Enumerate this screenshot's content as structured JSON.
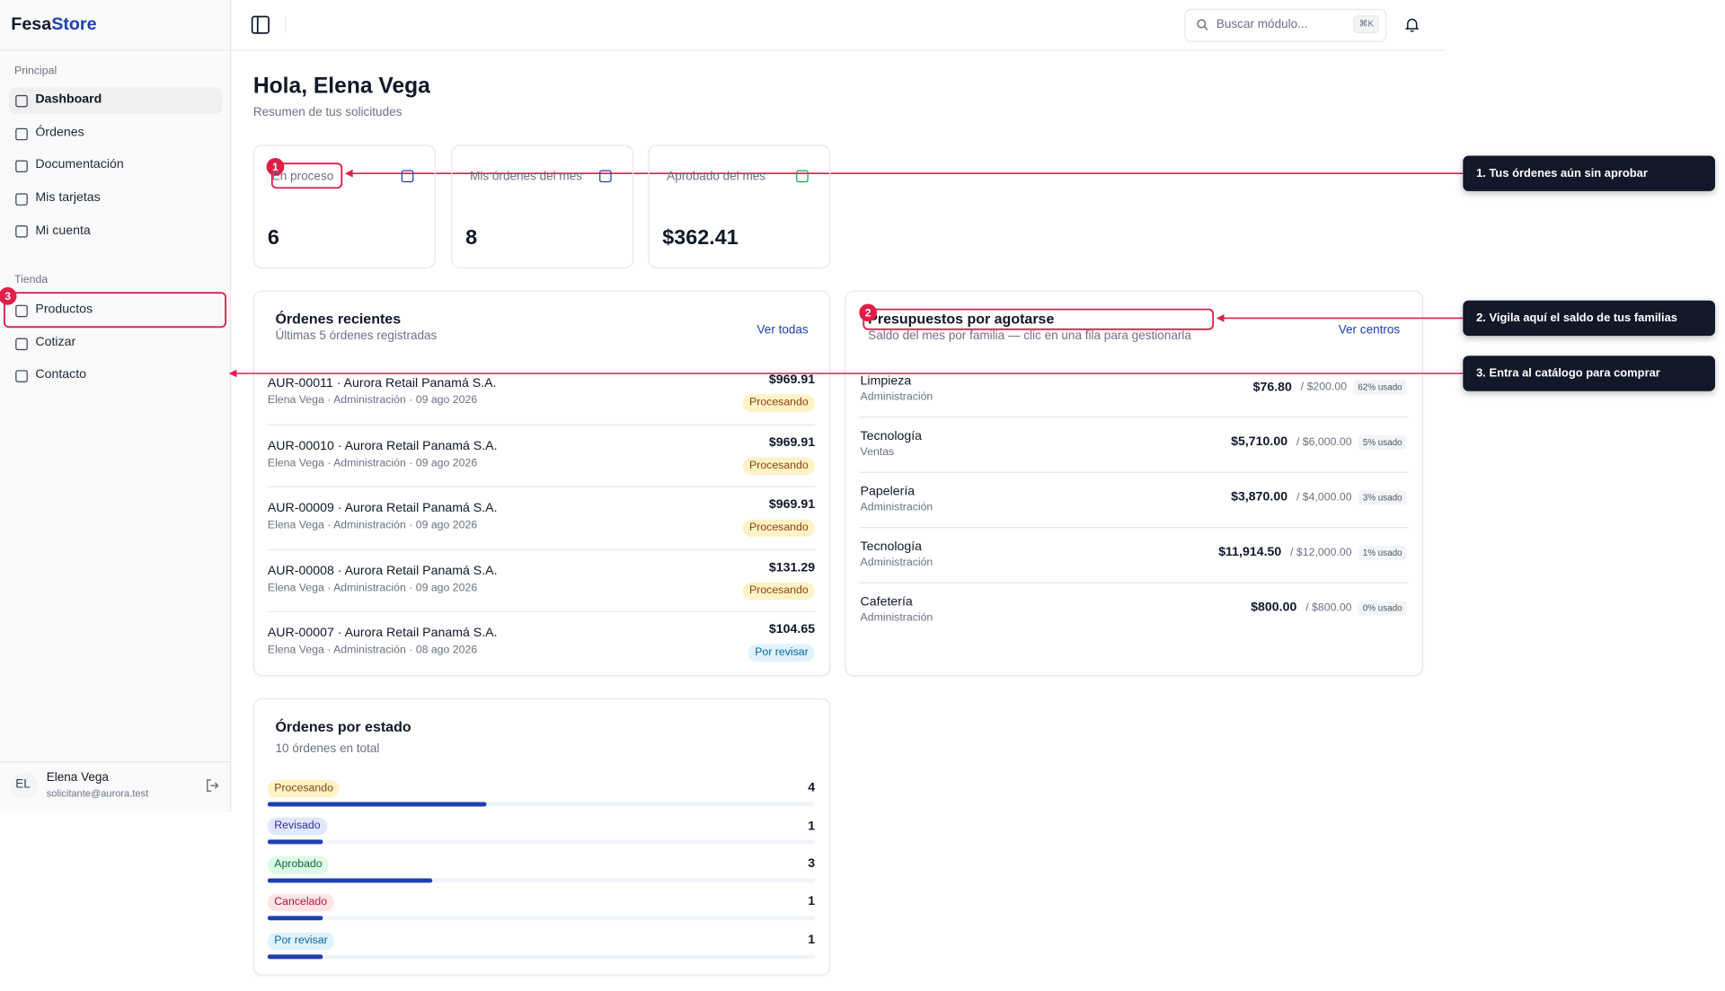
{
  "sidebar": {
    "brand": [
      "Fesa",
      "Store"
    ],
    "sections": [
      {
        "title": "Principal",
        "items": [
          "Dashboard",
          "Órdenes",
          "Documentación",
          "Mis tarjetas",
          "Mi cuenta"
        ]
      },
      {
        "title": "Tienda",
        "items": [
          "Productos",
          "Cotizar",
          "Contacto"
        ]
      }
    ],
    "user": {
      "initials": "EL",
      "name": "Elena Vega",
      "email": "solicitante@aurora.test"
    }
  },
  "header": {
    "search_placeholder": "Buscar módulo...",
    "shortcut": "⌘K"
  },
  "greeting": {
    "title": "Hola, Elena Vega",
    "subtitle": "Resumen de tus solicitudes"
  },
  "stats": [
    {
      "label": "En proceso",
      "value": "6"
    },
    {
      "label": "Mis órdenes del mes",
      "value": "8"
    },
    {
      "label": "Aprobado del mes",
      "value": "$362.41"
    }
  ],
  "recent_orders": {
    "title": "Órdenes recientes",
    "subtitle": "Últimas 5 órdenes registradas",
    "link": "Ver todas",
    "rows": [
      {
        "title": "AUR-00011 · Aurora Retail Panamá S.A.",
        "meta": "Elena Vega · Administración · 09 ago 2026",
        "amount": "$969.91",
        "status": "Procesando",
        "color": "#92400e",
        "background": "#fef3c7"
      },
      {
        "title": "AUR-00010 · Aurora Retail Panamá S.A.",
        "meta": "Elena Vega · Administración · 09 ago 2026",
        "amount": "$969.91",
        "status": "Procesando",
        "color": "#92400e",
        "background": "#fef3c7"
      },
      {
        "title": "AUR-00009 · Aurora Retail Panamá S.A.",
        "meta": "Elena Vega · Administración · 09 ago 2026",
        "amount": "$969.91",
        "status": "Procesando",
        "color": "#92400e",
        "background": "#fef3c7"
      },
      {
        "title": "AUR-00008 · Aurora Retail Panamá S.A.",
        "meta": "Elena Vega · Administración · 09 ago 2026",
        "amount": "$131.29",
        "status": "Procesando",
        "color": "#92400e",
        "background": "#fef3c7"
      },
      {
        "title": "AUR-00007 · Aurora Retail Panamá S.A.",
        "meta": "Elena Vega · Administración · 08 ago 2026",
        "amount": "$104.65",
        "status": "Por revisar",
        "color": "#0369a1",
        "background": "#e0f2fe"
      }
    ]
  },
  "budgets": {
    "title": "Presupuestos por agotarse",
    "subtitle": "Saldo del mes por familia — clic en una fila para gestionarla",
    "link": "Ver centros",
    "rows": [
      {
        "name": "Limpieza",
        "area": "Administración",
        "spent": "$76.80",
        "budget": "/ $200.00",
        "usage": "62% usado"
      },
      {
        "name": "Tecnología",
        "area": "Ventas",
        "spent": "$5,710.00",
        "budget": "/ $6,000.00",
        "usage": "5% usado"
      },
      {
        "name": "Papelería",
        "area": "Administración",
        "spent": "$3,870.00",
        "budget": "/ $4,000.00",
        "usage": "3% usado"
      },
      {
        "name": "Tecnología",
        "area": "Administración",
        "spent": "$11,914.50",
        "budget": "/ $12,000.00",
        "usage": "1% usado"
      },
      {
        "name": "Cafetería",
        "area": "Administración",
        "spent": "$800.00",
        "budget": "/ $800.00",
        "usage": "0% usado"
      }
    ]
  },
  "orders_by_status": {
    "title": "Órdenes por estado",
    "subtitle": "10 órdenes en total",
    "bar_color": "#1e40af",
    "rows": [
      {
        "status": "Procesando",
        "count": 4,
        "color": "#92400e",
        "background": "#fef3c7"
      },
      {
        "status": "Revisado",
        "count": 1,
        "color": "#3730a3",
        "background": "#e0e7ff"
      },
      {
        "status": "Aprobado",
        "count": 3,
        "color": "#166534",
        "background": "#dcfce7"
      },
      {
        "status": "Cancelado",
        "count": 1,
        "color": "#be123c",
        "background": "#ffe4e6"
      },
      {
        "status": "Por revisar",
        "count": 1,
        "color": "#0369a1",
        "background": "#e0f2fe"
      }
    ]
  },
  "annotations": [
    {
      "number": "1",
      "text": "1. Tus órdenes aún sin aprobar"
    },
    {
      "number": "2",
      "text": "2. Vigila aquí el saldo de tus familias"
    },
    {
      "number": "3",
      "text": "3. Entra al catálogo para comprar"
    }
  ]
}
